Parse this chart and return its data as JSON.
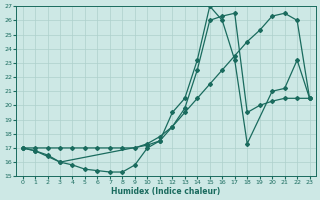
{
  "xlabel": "Humidex (Indice chaleur)",
  "bg_color": "#cde8e5",
  "grid_color": "#aed0cc",
  "line_color": "#1a6b5e",
  "ylim": [
    15,
    27
  ],
  "xlim": [
    -0.5,
    23.5
  ],
  "yticks": [
    15,
    16,
    17,
    18,
    19,
    20,
    21,
    22,
    23,
    24,
    25,
    26,
    27
  ],
  "xticks": [
    0,
    1,
    2,
    3,
    4,
    5,
    6,
    7,
    8,
    9,
    10,
    11,
    12,
    13,
    14,
    15,
    16,
    17,
    18,
    19,
    20,
    21,
    22,
    23
  ],
  "line1_x": [
    0,
    1,
    2,
    3,
    10,
    11,
    12,
    13,
    14,
    15,
    16,
    17,
    18,
    20,
    21,
    22,
    23
  ],
  "line1_y": [
    17,
    16.8,
    16.5,
    16.0,
    17.2,
    17.5,
    19.5,
    20.5,
    23.2,
    27.0,
    26.0,
    23.2,
    17.3,
    21.0,
    21.2,
    23.2,
    20.5
  ],
  "line2_x": [
    0,
    1,
    2,
    3,
    4,
    5,
    6,
    7,
    8,
    9,
    10,
    11,
    12,
    13,
    14,
    15,
    16,
    17,
    18,
    19,
    20,
    21,
    22,
    23
  ],
  "line2_y": [
    17.0,
    16.8,
    16.4,
    16.0,
    15.8,
    15.5,
    15.4,
    15.3,
    15.3,
    15.8,
    17.0,
    17.5,
    18.5,
    19.8,
    22.5,
    26.0,
    26.3,
    26.5,
    19.5,
    20.0,
    20.3,
    20.5,
    20.5,
    20.5
  ],
  "line3_x": [
    0,
    1,
    2,
    3,
    4,
    5,
    6,
    7,
    8,
    9,
    10,
    11,
    12,
    13,
    14,
    15,
    16,
    17,
    18,
    19,
    20,
    21,
    22,
    23
  ],
  "line3_y": [
    17.0,
    17.0,
    17.0,
    17.0,
    17.0,
    17.0,
    17.0,
    17.0,
    17.0,
    17.0,
    17.3,
    17.8,
    18.5,
    19.5,
    20.5,
    21.5,
    22.5,
    23.5,
    24.5,
    25.3,
    26.3,
    26.5,
    26.0,
    20.5
  ]
}
